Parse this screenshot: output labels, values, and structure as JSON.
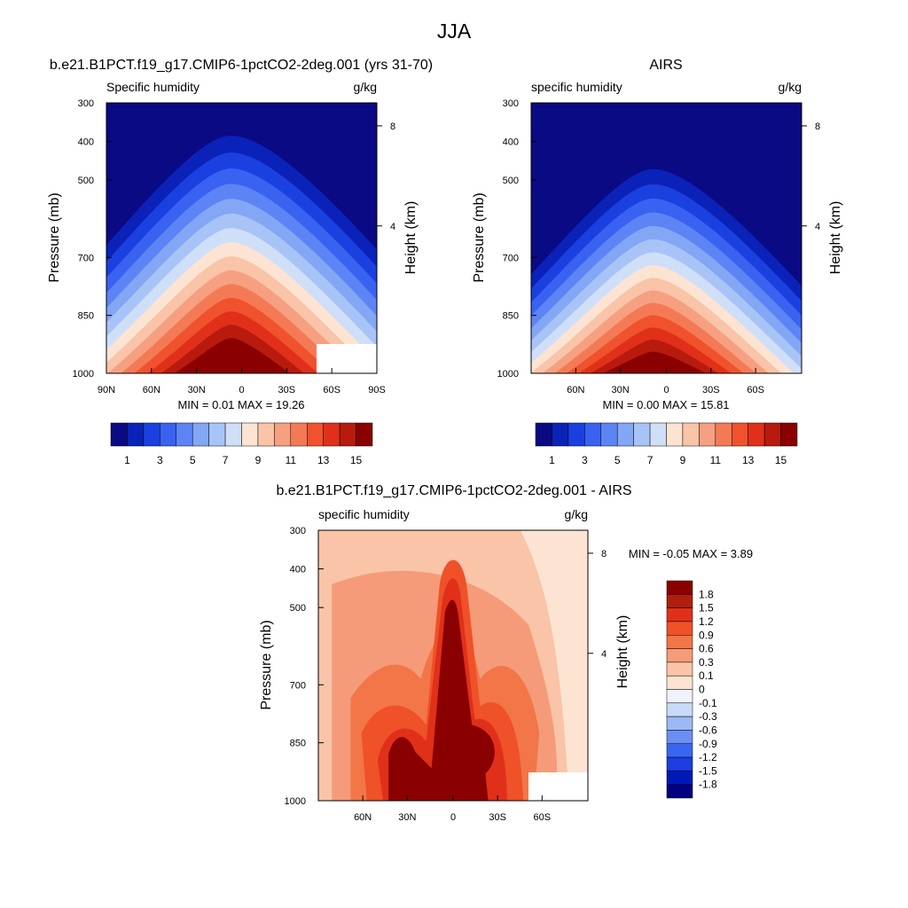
{
  "figure": {
    "title": "JJA"
  },
  "colors": {
    "palette": [
      "#0a0a85",
      "#0a22b8",
      "#1a40e0",
      "#3a62f0",
      "#5c84f5",
      "#83a6f5",
      "#a8c4f7",
      "#cfdff8",
      "#fde4d2",
      "#f9c4a8",
      "#f6a081",
      "#f47a55",
      "#f0522d",
      "#e0301a",
      "#b81a0e",
      "#8a0000"
    ],
    "diff_palette": [
      "#000080",
      "#0018b8",
      "#1c3ee0",
      "#3a66f2",
      "#6a90f5",
      "#9cb9f6",
      "#c8daf8",
      "#eef3fc",
      "#fde4d2",
      "#f9c4a8",
      "#f59b79",
      "#f27647",
      "#ef5129",
      "#e0301a",
      "#b01e0e",
      "#8a0000"
    ]
  },
  "chart_data": [
    {
      "type": "heatmap",
      "title": "b.e21.B1PCT.f19_g17.CMIP6-1pctCO2-2deg.001 (yrs 31-70)",
      "subtitle_left": "Specific humidity",
      "subtitle_right": "g/kg",
      "ylabel": "Pressure (mb)",
      "ylabel_right": "Height (km)",
      "x_ticks": [
        "90N",
        "60N",
        "30N",
        "0",
        "30S",
        "60S",
        "90S"
      ],
      "y_ticks": [
        "300",
        "400",
        "500",
        "700",
        "850",
        "1000"
      ],
      "right_ticks": [
        "8",
        "4"
      ],
      "stats": "MIN =   0.01  MAX =  19.26",
      "colorbar_labels": [
        "1",
        "3",
        "5",
        "7",
        "9",
        "11",
        "13",
        "15"
      ],
      "min": 0.01,
      "max": 19.26,
      "peak_latitude": "10N",
      "ylim": [
        1000,
        300
      ]
    },
    {
      "type": "heatmap",
      "title": "AIRS",
      "subtitle_left": "specific humidity",
      "subtitle_right": "g/kg",
      "ylabel": "Pressure (mb)",
      "ylabel_right": "Height (km)",
      "x_ticks": [
        "60N",
        "30N",
        "0",
        "30S",
        "60S"
      ],
      "y_ticks": [
        "300",
        "400",
        "500",
        "700",
        "850",
        "1000"
      ],
      "right_ticks": [
        "8",
        "4"
      ],
      "stats": "MIN =   0.00  MAX =  15.81",
      "colorbar_labels": [
        "1",
        "3",
        "5",
        "7",
        "9",
        "11",
        "13",
        "15"
      ],
      "min": 0.0,
      "max": 15.81,
      "peak_latitude": "10N",
      "ylim": [
        1000,
        300
      ]
    },
    {
      "type": "heatmap",
      "title": "b.e21.B1PCT.f19_g17.CMIP6-1pctCO2-2deg.001 - AIRS",
      "subtitle_left": "specific humidity",
      "subtitle_right": "g/kg",
      "ylabel": "Pressure (mb)",
      "ylabel_right": "Height (km)",
      "x_ticks": [
        "60N",
        "30N",
        "0",
        "30S",
        "60S"
      ],
      "y_ticks": [
        "300",
        "400",
        "500",
        "700",
        "850",
        "1000"
      ],
      "right_ticks": [
        "8",
        "4"
      ],
      "stats": "MIN =  -0.05  MAX =   3.89",
      "colorbar_labels": [
        "1.8",
        "1.5",
        "1.2",
        "0.9",
        "0.6",
        "0.3",
        "0.1",
        "0",
        "-0.1",
        "-0.3",
        "-0.6",
        "-0.9",
        "-1.2",
        "-1.5",
        "-1.8"
      ],
      "min": -0.05,
      "max": 3.89,
      "ylim": [
        1000,
        300
      ]
    }
  ]
}
